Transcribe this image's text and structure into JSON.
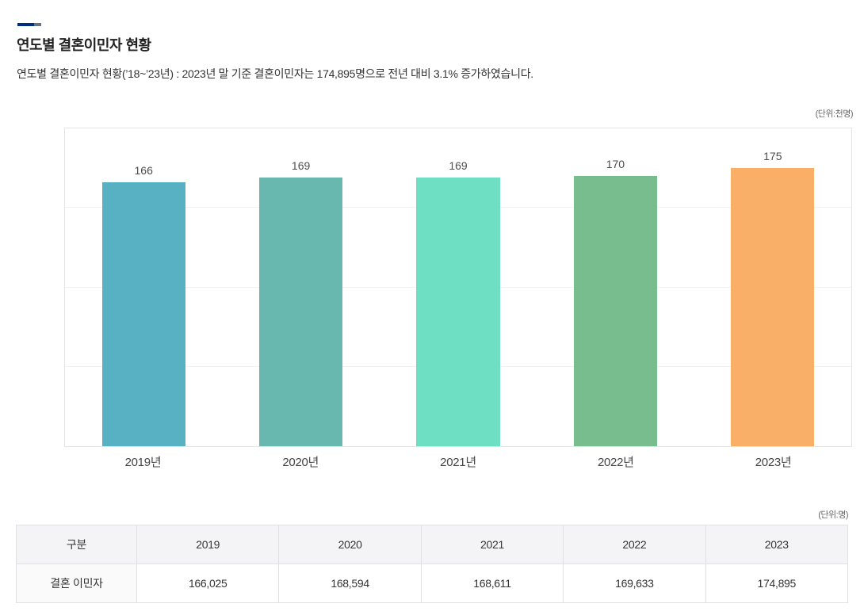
{
  "page": {
    "title": "연도별 결혼이민자 현황",
    "subtitle": "연도별 결혼이민자 현황(’18~’23년) : 2023년 말 기준 결혼이민자는 174,895명으로 전년 대비 3.1% 증가하였습니다.",
    "chart_unit_label": "(단위:천명)",
    "table_unit_label": "(단위:명)"
  },
  "colors": {
    "accent_navy": "#022c7e",
    "accent_gray": "#66737f",
    "grid_line": "#f1f1f1",
    "table_header_bg": "#f4f4f6",
    "table_border": "#e1e1e1"
  },
  "chart_data": {
    "type": "bar",
    "title": "연도별 결혼이민자 현황",
    "unit": "천명",
    "categories": [
      "2019년",
      "2020년",
      "2021년",
      "2022년",
      "2023년"
    ],
    "values": [
      166,
      169,
      169,
      170,
      175
    ],
    "value_labels": [
      "166",
      "169",
      "169",
      "170",
      "175"
    ],
    "bar_colors": [
      "#57b1c2",
      "#69b8b0",
      "#6fdfc3",
      "#77bd8e",
      "#f9af68"
    ],
    "xlabel": "",
    "ylabel": "",
    "ylim": [
      0,
      200
    ],
    "gridline_values": [
      50,
      100,
      150
    ],
    "grid": true,
    "legend_position": "none"
  },
  "table": {
    "headers": [
      "구분",
      "2019",
      "2020",
      "2021",
      "2022",
      "2023"
    ],
    "rows": [
      {
        "label": "결혼 이민자",
        "values": [
          "166,025",
          "168,594",
          "168,611",
          "169,633",
          "174,895"
        ]
      }
    ]
  }
}
